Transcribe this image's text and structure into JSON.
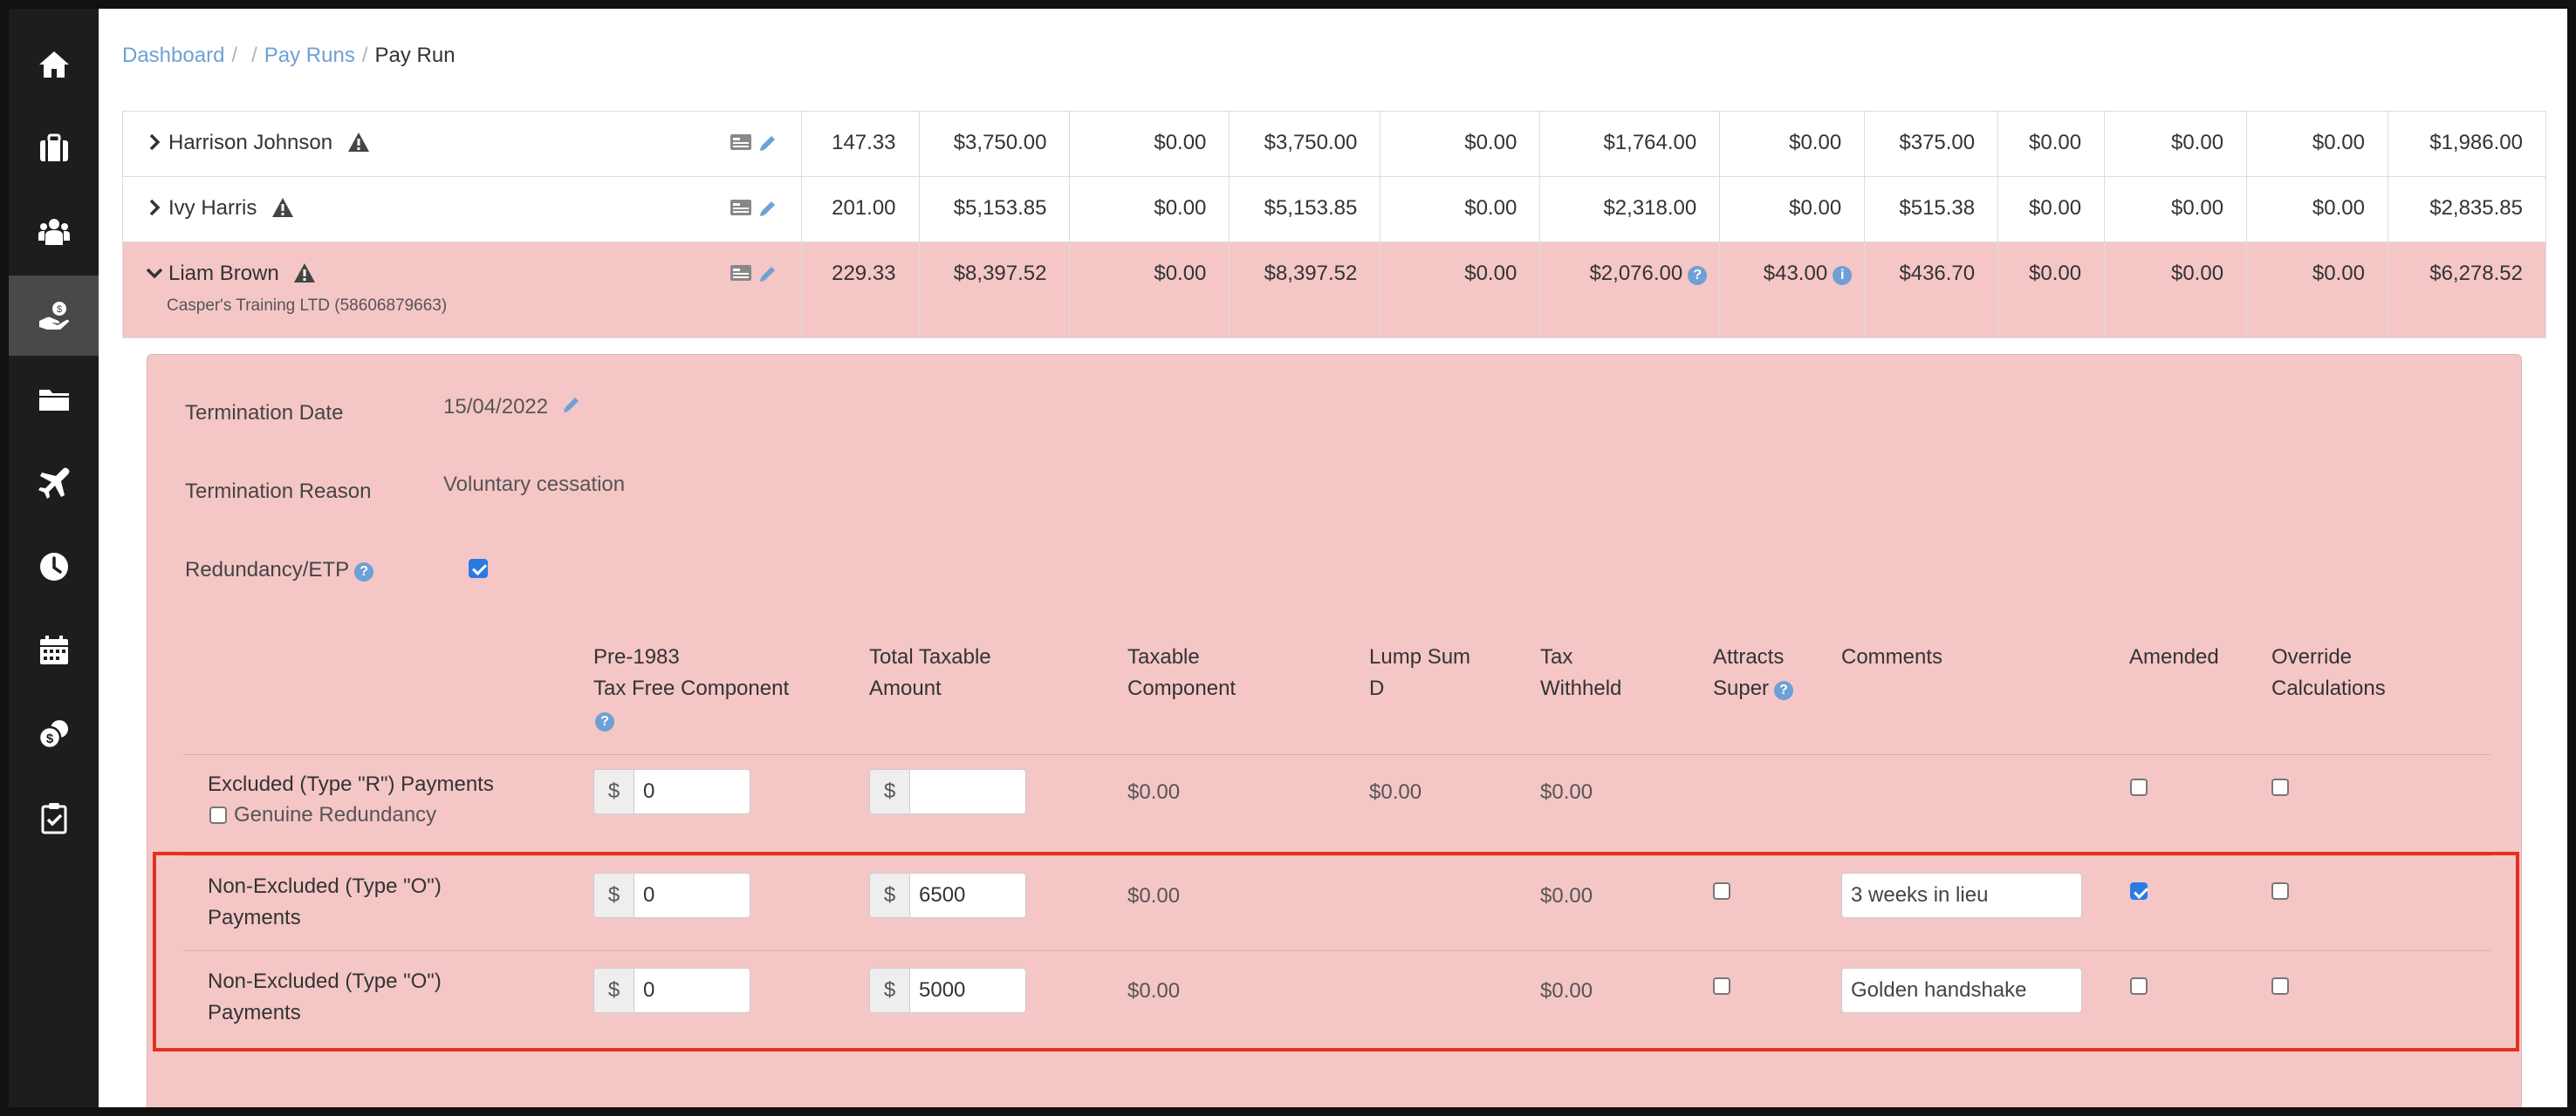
{
  "breadcrumb": {
    "dashboard": "Dashboard",
    "sep": "/",
    "pay_runs": "Pay Runs",
    "current": "Pay Run"
  },
  "sidebar": {
    "icons": [
      "home-icon",
      "briefcase-icon",
      "people-icon",
      "pay-hand-icon",
      "folder-icon",
      "plane-icon",
      "clock-icon",
      "calendar-icon",
      "coins-icon",
      "clipboard-check-icon"
    ],
    "active_index": 3
  },
  "employees": [
    {
      "name": "Harrison Johnson",
      "hours": "147.33",
      "gross": "$3,750.00",
      "c3": "$0.00",
      "c4": "$3,750.00",
      "c5": "$0.00",
      "tax": "$1,764.00",
      "c7": "$0.00",
      "super": "$375.00",
      "c9": "$0.00",
      "c10": "$0.00",
      "c11": "$0.00",
      "net": "$1,986.00"
    },
    {
      "name": "Ivy Harris",
      "hours": "201.00",
      "gross": "$5,153.85",
      "c3": "$0.00",
      "c4": "$5,153.85",
      "c5": "$0.00",
      "tax": "$2,318.00",
      "c7": "$0.00",
      "super": "$515.38",
      "c9": "$0.00",
      "c10": "$0.00",
      "c11": "$0.00",
      "net": "$2,835.85"
    },
    {
      "name": "Liam Brown",
      "company": "Casper's Training LTD (58606879663)",
      "hours": "229.33",
      "gross": "$8,397.52",
      "c3": "$0.00",
      "c4": "$8,397.52",
      "c5": "$0.00",
      "tax": "$2,076.00",
      "c7": "$43.00",
      "super": "$436.70",
      "c9": "$0.00",
      "c10": "$0.00",
      "c11": "$0.00",
      "net": "$6,278.52"
    }
  ],
  "termination": {
    "date_label": "Termination Date",
    "date_value": "15/04/2022",
    "reason_label": "Termination Reason",
    "reason_value": "Voluntary cessation",
    "redundancy_label": "Redundancy/ETP",
    "redundancy_checked": true
  },
  "etp_table": {
    "headers": {
      "pre1983_l1": "Pre-1983",
      "pre1983_l2": "Tax Free Component",
      "taxable_amount_l1": "Total Taxable",
      "taxable_amount_l2": "Amount",
      "taxable_component_l1": "Taxable",
      "taxable_component_l2": "Component",
      "lump_sum_l1": "Lump Sum",
      "lump_sum_l2": "D",
      "tax_withheld_l1": "Tax",
      "tax_withheld_l2": "Withheld",
      "attracts_super_l1": "Attracts",
      "attracts_super_l2": "Super",
      "comments": "Comments",
      "amended": "Amended",
      "override_l1": "Override",
      "override_l2": "Calculations"
    },
    "currency_symbol": "$",
    "rows": [
      {
        "label_l1": "Excluded (Type \"R\") Payments",
        "label_l2": "Genuine Redundancy",
        "pre1983": "0",
        "taxable_amount": "",
        "taxable_component": "$0.00",
        "lump_sum_d": "$0.00",
        "tax_withheld": "$0.00",
        "comment": "",
        "amended": false,
        "override": false
      },
      {
        "label_l1": "Non-Excluded (Type \"O\")",
        "label_l2": "Payments",
        "pre1983": "0",
        "taxable_amount": "6500",
        "taxable_component": "$0.00",
        "lump_sum_d": "",
        "tax_withheld": "$0.00",
        "attracts_super": false,
        "comment": "3 weeks in lieu",
        "amended": true,
        "override": false
      },
      {
        "label_l1": "Non-Excluded (Type \"O\")",
        "label_l2": "Payments",
        "pre1983": "0",
        "taxable_amount": "5000",
        "taxable_component": "$0.00",
        "lump_sum_d": "",
        "tax_withheld": "$0.00",
        "attracts_super": false,
        "comment": "Golden handshake",
        "amended": false,
        "override": false
      }
    ]
  },
  "colors": {
    "sidebar": "#1e1c1c",
    "highlight_row": "#f5c6c6",
    "link": "#6ea0d6",
    "annotation_box": "#e0331f"
  }
}
